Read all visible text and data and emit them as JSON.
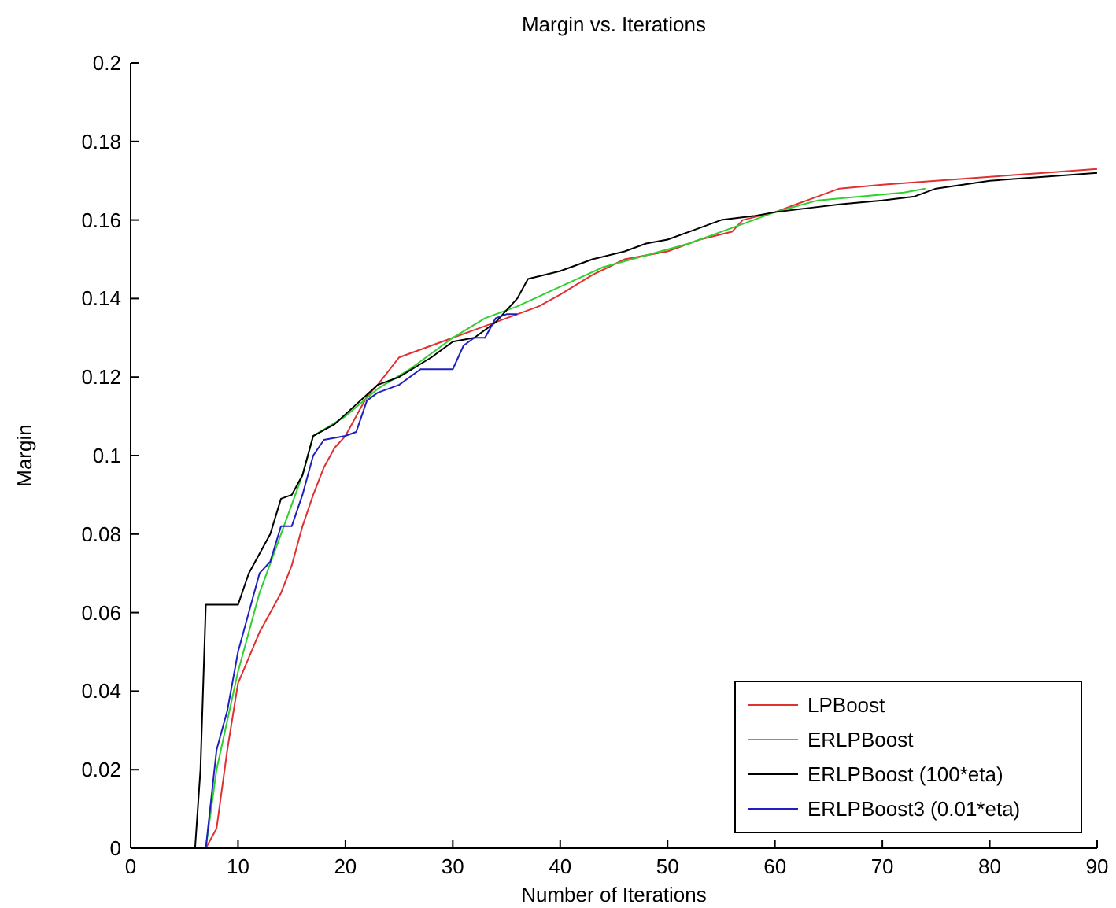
{
  "chart_data": {
    "type": "line",
    "title": "Margin vs. Iterations",
    "xlabel": "Number of Iterations",
    "ylabel": "Margin",
    "xlim": [
      0,
      90
    ],
    "xticks": [
      0,
      10,
      20,
      30,
      40,
      50,
      60,
      70,
      80,
      90
    ],
    "ylim": [
      0,
      0.2
    ],
    "yticks": [
      0,
      0.02,
      0.04,
      0.06,
      0.08,
      0.1,
      0.12,
      0.14,
      0.16,
      0.18,
      0.2
    ],
    "grid": false,
    "legend": "bottom right",
    "line_style": "solid",
    "series": [
      {
        "name": "LPBoost",
        "color": "#e03030",
        "x": [
          3,
          7,
          8,
          9,
          10,
          12,
          14,
          15,
          16,
          17,
          18,
          19,
          20,
          21,
          22,
          23,
          25,
          27,
          30,
          32,
          35,
          38,
          40,
          43,
          46,
          50,
          53,
          56,
          57,
          60,
          63,
          66,
          70,
          75,
          80,
          85,
          90
        ],
        "values": [
          0,
          0,
          0.005,
          0.025,
          0.042,
          0.055,
          0.065,
          0.072,
          0.082,
          0.09,
          0.097,
          0.102,
          0.105,
          0.11,
          0.115,
          0.118,
          0.125,
          0.127,
          0.13,
          0.132,
          0.135,
          0.138,
          0.141,
          0.146,
          0.15,
          0.152,
          0.155,
          0.157,
          0.16,
          0.162,
          0.165,
          0.168,
          0.169,
          0.17,
          0.171,
          0.172,
          0.173
        ]
      },
      {
        "name": "ERLPBoost",
        "color": "#30d030",
        "x": [
          3,
          7,
          8,
          10,
          12,
          14,
          16,
          17,
          20,
          23,
          26,
          30,
          33,
          36,
          40,
          44,
          48,
          52,
          56,
          60,
          64,
          68,
          72,
          74
        ],
        "values": [
          0,
          0,
          0.02,
          0.045,
          0.065,
          0.08,
          0.095,
          0.105,
          0.11,
          0.117,
          0.122,
          0.13,
          0.135,
          0.138,
          0.143,
          0.148,
          0.151,
          0.154,
          0.158,
          0.162,
          0.165,
          0.166,
          0.167,
          0.168
        ]
      },
      {
        "name": "ERLPBoost (100*eta)",
        "color": "#000000",
        "x": [
          3,
          6,
          6.5,
          7,
          10,
          11,
          13,
          14,
          15,
          16,
          17,
          19,
          21,
          23,
          25,
          28,
          30,
          32,
          34,
          36,
          37,
          40,
          43,
          46,
          48,
          50,
          52,
          55,
          58,
          60,
          63,
          66,
          70,
          73,
          75,
          80,
          85,
          90
        ],
        "values": [
          0,
          0,
          0.02,
          0.062,
          0.062,
          0.07,
          0.08,
          0.089,
          0.09,
          0.095,
          0.105,
          0.108,
          0.113,
          0.118,
          0.12,
          0.125,
          0.129,
          0.13,
          0.134,
          0.14,
          0.145,
          0.147,
          0.15,
          0.152,
          0.154,
          0.155,
          0.157,
          0.16,
          0.161,
          0.162,
          0.163,
          0.164,
          0.165,
          0.166,
          0.168,
          0.17,
          0.171,
          0.172
        ]
      },
      {
        "name": "ERLPBoost3 (0.01*eta)",
        "color": "#2020c0",
        "x": [
          3,
          7,
          8,
          9,
          10,
          11,
          12,
          13,
          14,
          15,
          16,
          17,
          18,
          20,
          21,
          22,
          23,
          25,
          27,
          30,
          31,
          32,
          33,
          34,
          35,
          36
        ],
        "values": [
          0,
          0,
          0.025,
          0.035,
          0.05,
          0.06,
          0.07,
          0.073,
          0.082,
          0.082,
          0.09,
          0.1,
          0.104,
          0.105,
          0.106,
          0.114,
          0.116,
          0.118,
          0.122,
          0.122,
          0.128,
          0.13,
          0.13,
          0.135,
          0.136,
          0.136
        ]
      }
    ]
  }
}
